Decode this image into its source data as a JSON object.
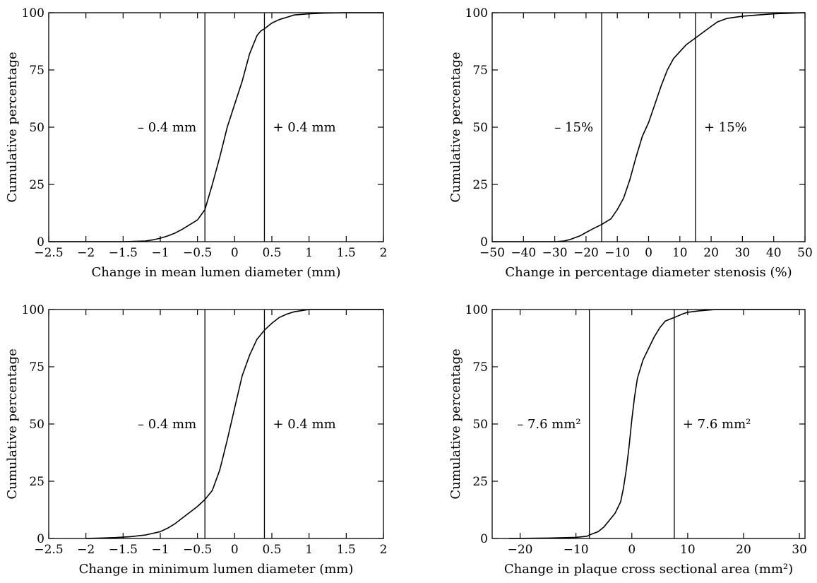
{
  "chart_data": [
    {
      "type": "line",
      "xlabel": "Change in mean lumen diameter (mm)",
      "ylabel": "Cumulative percentage",
      "xlim": [
        -2.5,
        2
      ],
      "ylim": [
        0,
        100
      ],
      "xticks": [
        -2.5,
        -2,
        -1.5,
        -1,
        -0.5,
        0,
        0.5,
        1,
        1.5,
        2
      ],
      "xtick_labels": [
        "−2.5",
        "−2",
        "−1.5",
        "−1",
        "−0.5",
        "0",
        "0.5",
        "1",
        "1.5",
        "2"
      ],
      "yticks": [
        0,
        25,
        50,
        75,
        100
      ],
      "ytick_labels": [
        "0",
        "25",
        "50",
        "75",
        "100"
      ],
      "grid": false,
      "series": [
        {
          "x": [
            -2.5,
            -1.5,
            -1.2,
            -1.1,
            -1.0,
            -0.9,
            -0.8,
            -0.7,
            -0.6,
            -0.5,
            -0.4,
            -0.3,
            -0.2,
            -0.1,
            0.0,
            0.1,
            0.2,
            0.3,
            0.35,
            0.4,
            0.5,
            0.6,
            0.7,
            0.8,
            1.0,
            1.2,
            1.5,
            2.0
          ],
          "y": [
            0,
            0,
            0.3,
            0.8,
            1.5,
            2.5,
            3.8,
            5.5,
            7.5,
            9.5,
            14,
            25,
            37,
            50,
            60,
            70,
            82,
            90,
            92,
            93,
            95.5,
            97,
            98,
            99,
            99.5,
            99.8,
            100,
            100
          ]
        }
      ],
      "reference_lines": [
        {
          "x": -0.4,
          "label": "– 0.4 mm"
        },
        {
          "x": 0.4,
          "label": "+ 0.4 mm"
        }
      ]
    },
    {
      "type": "line",
      "xlabel": "Change in percentage diameter stenosis (%)",
      "ylabel": "Cumulative percentage",
      "xlim": [
        -50,
        50
      ],
      "ylim": [
        0,
        100
      ],
      "xticks": [
        -50,
        -40,
        -30,
        -20,
        -10,
        0,
        10,
        20,
        30,
        40,
        50
      ],
      "xtick_labels": [
        "−50",
        "−40",
        "−30",
        "−20",
        "−10",
        "0",
        "10",
        "20",
        "30",
        "40",
        "50"
      ],
      "yticks": [
        0,
        25,
        50,
        75,
        100
      ],
      "ytick_labels": [
        "0",
        "25",
        "50",
        "75",
        "100"
      ],
      "grid": false,
      "series": [
        {
          "x": [
            -50,
            -30,
            -27,
            -25,
            -22,
            -20,
            -18,
            -15,
            -12,
            -10,
            -8,
            -6,
            -4,
            -2,
            0,
            2,
            4,
            6,
            8,
            10,
            12,
            14,
            15,
            18,
            20,
            22,
            25,
            30,
            35,
            40,
            50
          ],
          "y": [
            0,
            0,
            0.3,
            1,
            2.5,
            4,
            5.5,
            7.5,
            10,
            14,
            19,
            27,
            37,
            46,
            52,
            60,
            68,
            75,
            80,
            83,
            86,
            88,
            89,
            92,
            94,
            96,
            97.5,
            98.5,
            99,
            99.5,
            100
          ]
        }
      ],
      "reference_lines": [
        {
          "x": -15,
          "label": "– 15%"
        },
        {
          "x": 15,
          "label": "+ 15%"
        }
      ]
    },
    {
      "type": "line",
      "xlabel": "Change in minimum lumen diameter (mm)",
      "ylabel": "Cumulative percentage",
      "xlim": [
        -2.5,
        2
      ],
      "ylim": [
        0,
        100
      ],
      "xticks": [
        -2.5,
        -2,
        -1.5,
        -1,
        -0.5,
        0,
        0.5,
        1,
        1.5,
        2
      ],
      "xtick_labels": [
        "−2.5",
        "−2",
        "−1.5",
        "−1",
        "−0.5",
        "0",
        "0.5",
        "1",
        "1.5",
        "2"
      ],
      "yticks": [
        0,
        25,
        50,
        75,
        100
      ],
      "ytick_labels": [
        "0",
        "25",
        "50",
        "75",
        "100"
      ],
      "grid": false,
      "series": [
        {
          "x": [
            -2.0,
            -1.8,
            -1.6,
            -1.4,
            -1.2,
            -1.0,
            -0.9,
            -0.8,
            -0.7,
            -0.6,
            -0.5,
            -0.4,
            -0.3,
            -0.2,
            -0.1,
            0.0,
            0.1,
            0.2,
            0.3,
            0.4,
            0.5,
            0.6,
            0.7,
            0.8,
            0.9,
            1.0,
            1.5,
            2.0
          ],
          "y": [
            0,
            0.2,
            0.4,
            0.8,
            1.5,
            3,
            4.5,
            6.5,
            9,
            11.5,
            14,
            17,
            21,
            30,
            43,
            57,
            71,
            80,
            87,
            91,
            94,
            96.5,
            98,
            99,
            99.5,
            100,
            100,
            100
          ]
        }
      ],
      "reference_lines": [
        {
          "x": -0.4,
          "label": "– 0.4 mm"
        },
        {
          "x": 0.4,
          "label": "+ 0.4 mm"
        }
      ]
    },
    {
      "type": "line",
      "xlabel": "Change in plaque cross sectional area (mm²)",
      "ylabel": "Cumulative percentage",
      "xlim": [
        -25,
        31
      ],
      "ylim": [
        0,
        100
      ],
      "xticks": [
        -20,
        -10,
        0,
        10,
        20,
        30
      ],
      "xtick_labels": [
        "−20",
        "−10",
        "0",
        "10",
        "20",
        "30"
      ],
      "yticks": [
        0,
        25,
        50,
        75,
        100
      ],
      "ytick_labels": [
        "0",
        "25",
        "50",
        "75",
        "100"
      ],
      "grid": false,
      "series": [
        {
          "x": [
            -22,
            -15,
            -10,
            -8,
            -7.6,
            -6,
            -5,
            -4,
            -3,
            -2,
            -1.5,
            -1,
            -0.5,
            0,
            0.5,
            1,
            2,
            3,
            4,
            5,
            6,
            7.6,
            9,
            10,
            12,
            15,
            20,
            30
          ],
          "y": [
            0,
            0.2,
            0.5,
            1,
            1.5,
            3,
            5,
            8,
            11,
            16,
            22,
            30,
            40,
            52,
            62,
            70,
            78,
            83,
            88,
            92,
            95,
            96.5,
            98,
            98.8,
            99.4,
            100,
            100,
            100
          ]
        }
      ],
      "reference_lines": [
        {
          "x": -7.6,
          "label": "– 7.6 mm²"
        },
        {
          "x": 7.6,
          "label": "+ 7.6 mm²"
        }
      ]
    }
  ]
}
